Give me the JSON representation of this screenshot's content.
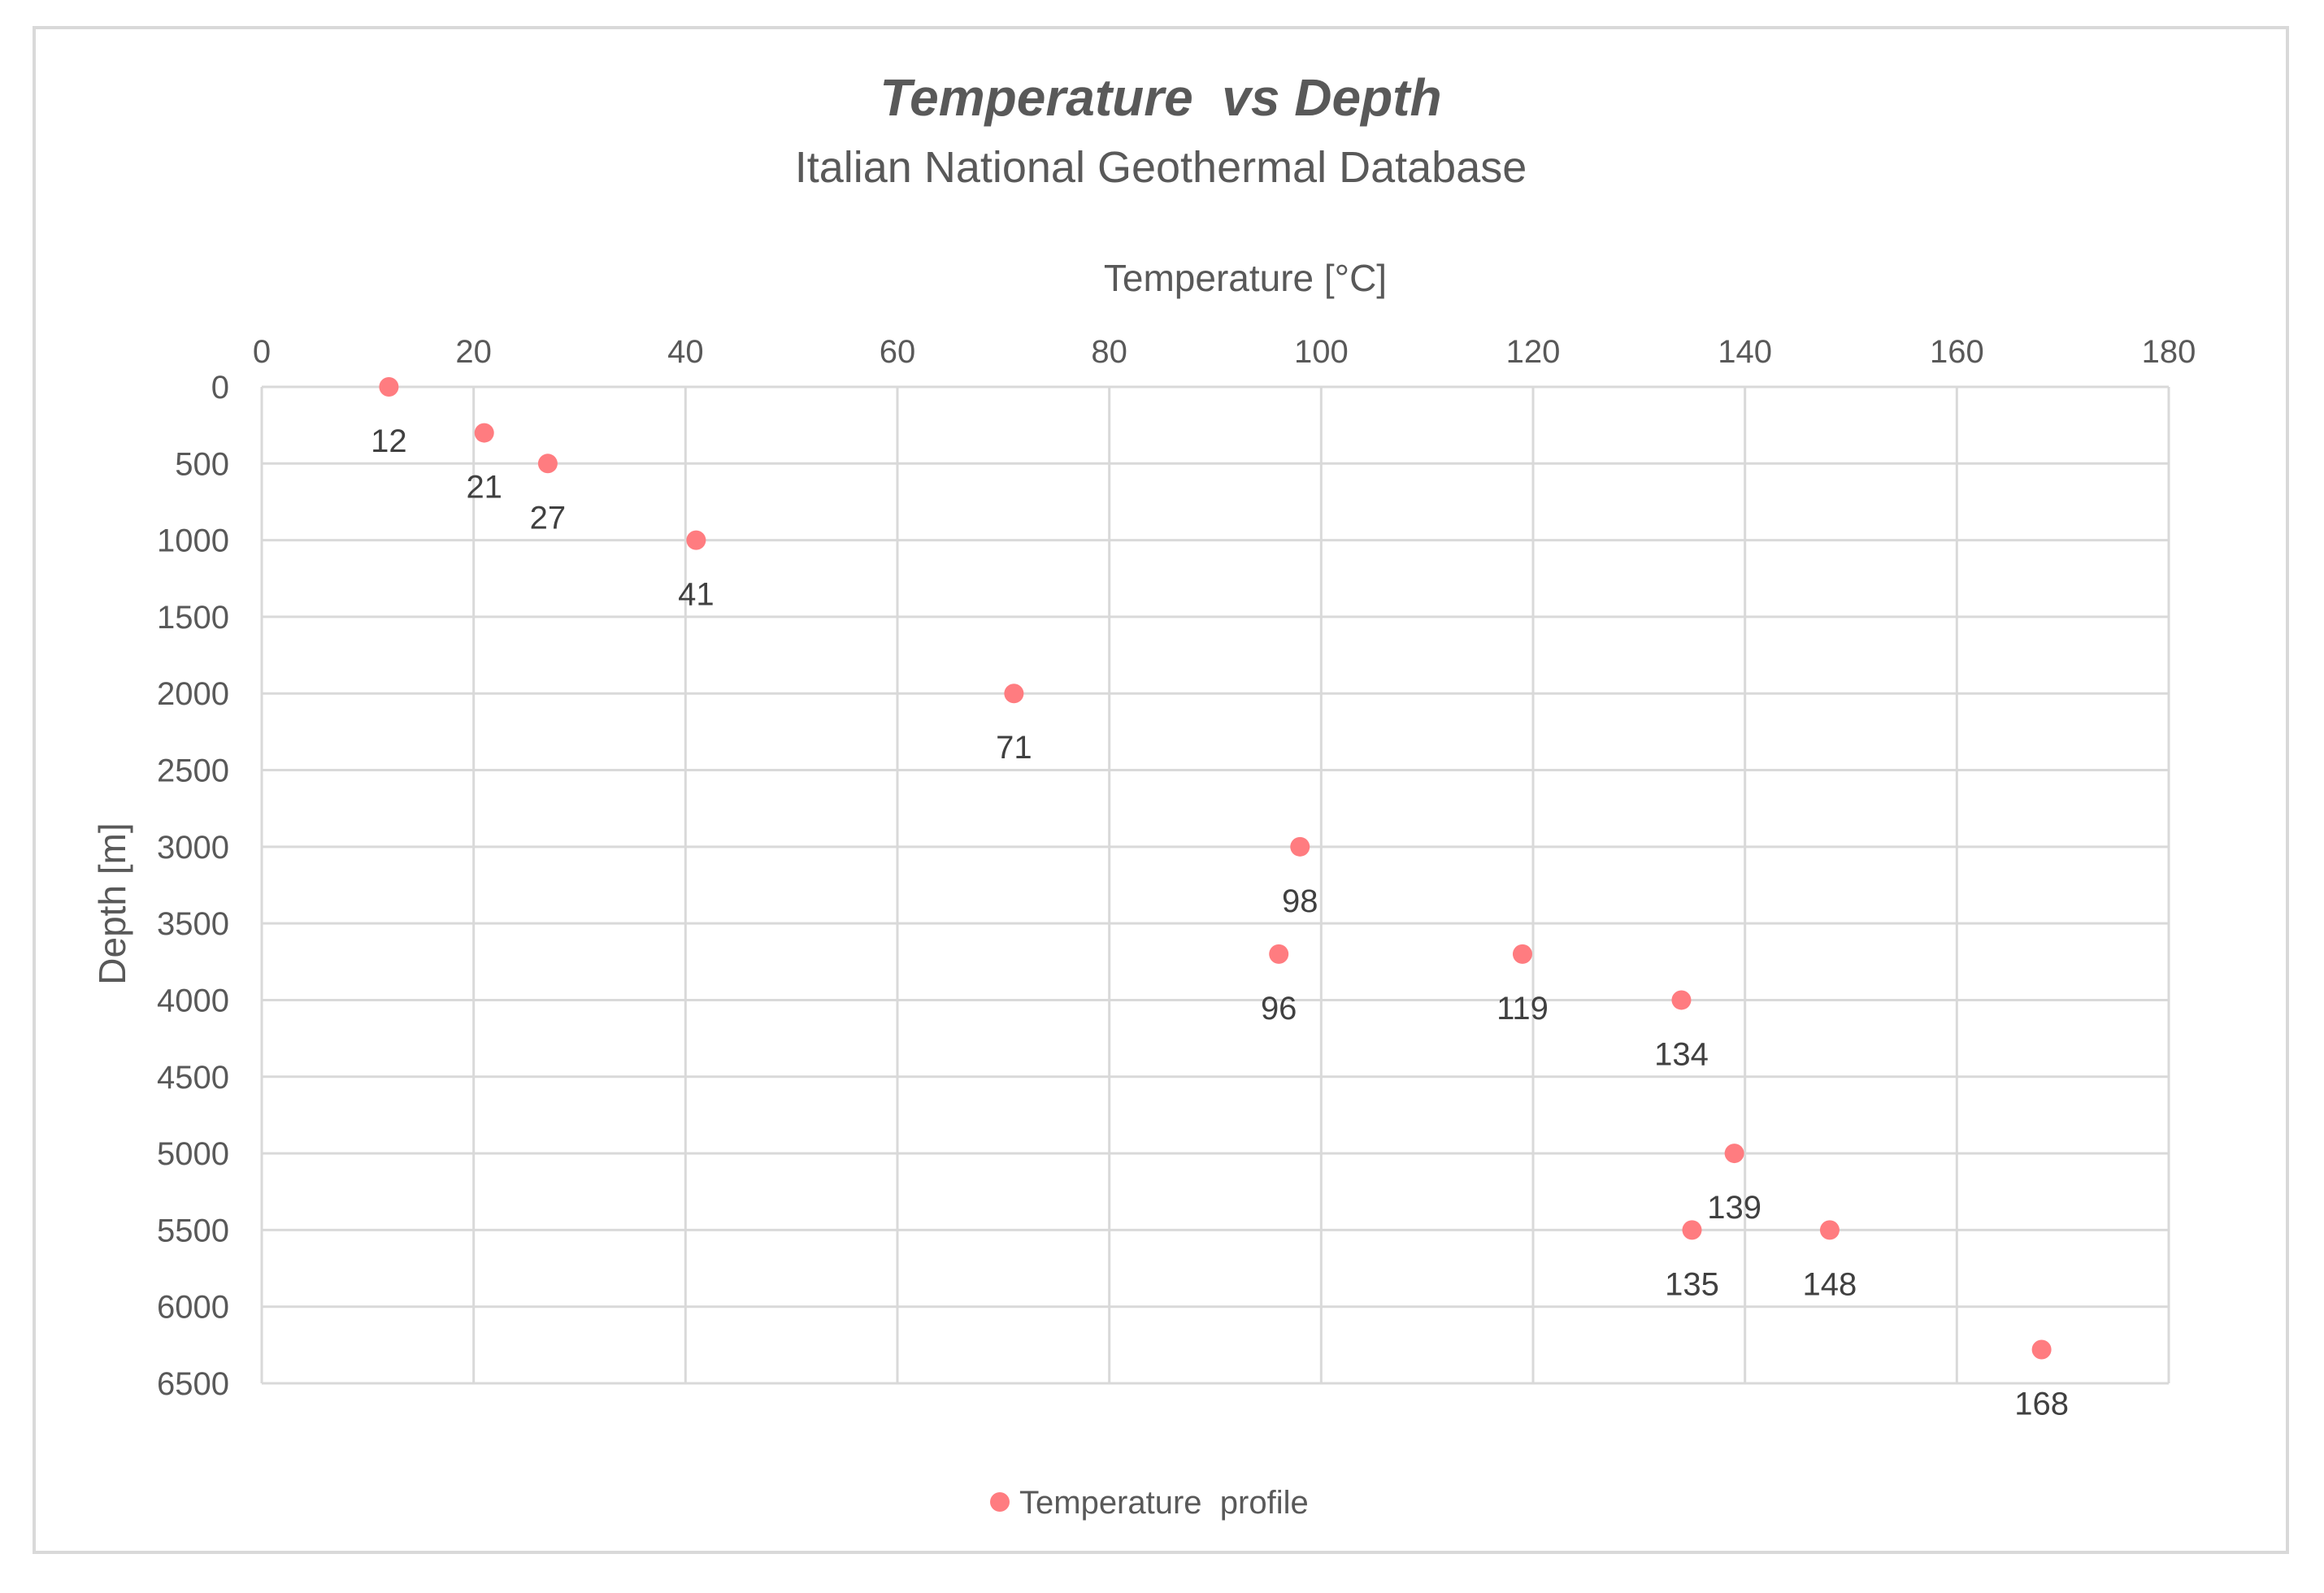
{
  "chart_data": {
    "type": "scatter",
    "title": "Temperature  vs Depth",
    "subtitle": "Italian National Geothermal Database",
    "xlabel": "Temperature [°C]",
    "ylabel": "Depth [m]",
    "xlim": [
      0,
      180
    ],
    "ylim": [
      0,
      6500
    ],
    "y_inverted": true,
    "x_ticks": [
      0,
      20,
      40,
      60,
      80,
      100,
      120,
      140,
      160,
      180
    ],
    "y_ticks": [
      0,
      500,
      1000,
      1500,
      2000,
      2500,
      3000,
      3500,
      4000,
      4500,
      5000,
      5500,
      6000,
      6500
    ],
    "grid": true,
    "legend_position": "bottom",
    "series": [
      {
        "name": "Temperature  profile",
        "color": "#ff7c80",
        "points": [
          {
            "x": 12,
            "y": 0,
            "label": "12"
          },
          {
            "x": 21,
            "y": 300,
            "label": "21"
          },
          {
            "x": 27,
            "y": 500,
            "label": "27"
          },
          {
            "x": 41,
            "y": 1000,
            "label": "41"
          },
          {
            "x": 71,
            "y": 2000,
            "label": "71"
          },
          {
            "x": 98,
            "y": 3000,
            "label": "98"
          },
          {
            "x": 96,
            "y": 3700,
            "label": "96"
          },
          {
            "x": 119,
            "y": 3700,
            "label": "119"
          },
          {
            "x": 134,
            "y": 4000,
            "label": "134"
          },
          {
            "x": 139,
            "y": 5000,
            "label": "139"
          },
          {
            "x": 135,
            "y": 5500,
            "label": "135"
          },
          {
            "x": 148,
            "y": 5500,
            "label": "148"
          },
          {
            "x": 168,
            "y": 6280,
            "label": "168"
          }
        ]
      }
    ],
    "colors": {
      "gridline": "#d9d9d9",
      "text": "#595959",
      "data_label": "#404040"
    }
  }
}
